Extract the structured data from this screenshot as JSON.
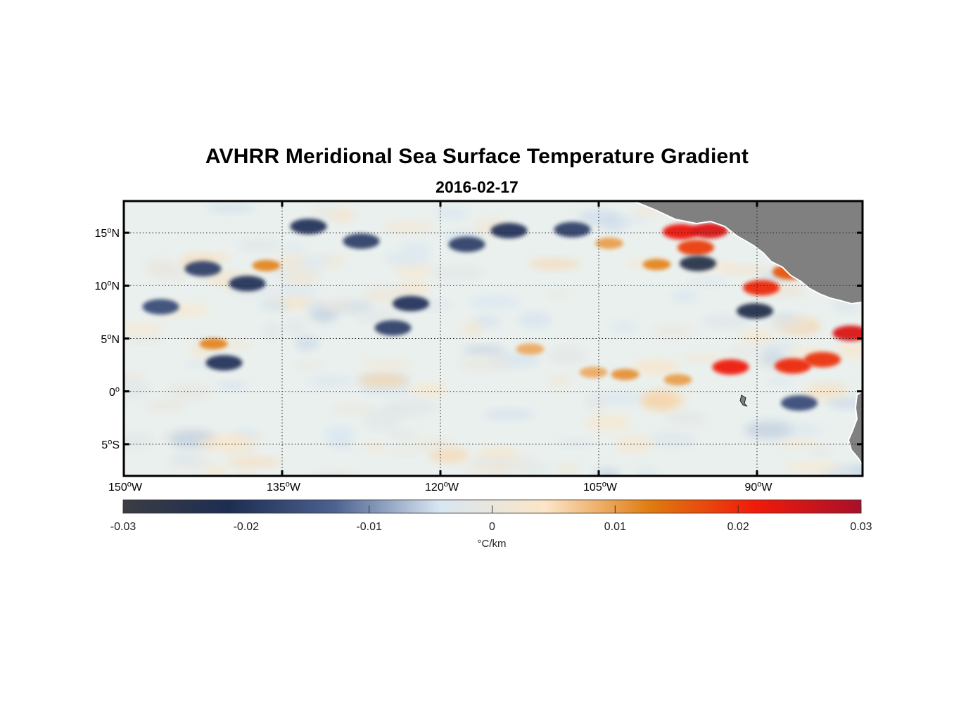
{
  "title": "AVHRR Meridional Sea Surface Temperature Gradient",
  "subtitle": "2016-02-17",
  "map": {
    "type": "heatmap",
    "region": {
      "lon_range": [
        -150,
        -80
      ],
      "lat_range": [
        -8,
        18
      ]
    },
    "latitude_ticks": [
      {
        "value": 15,
        "deg": "15",
        "hem": "N"
      },
      {
        "value": 10,
        "deg": "10",
        "hem": "N"
      },
      {
        "value": 5,
        "deg": "5",
        "hem": "N"
      },
      {
        "value": 0,
        "deg": "0",
        "hem": ""
      },
      {
        "value": -5,
        "deg": "5",
        "hem": "S"
      }
    ],
    "longitude_ticks": [
      {
        "value": -150,
        "deg": "150",
        "hem": "W"
      },
      {
        "value": -135,
        "deg": "135",
        "hem": "W"
      },
      {
        "value": -120,
        "deg": "120",
        "hem": "W"
      },
      {
        "value": -105,
        "deg": "105",
        "hem": "W"
      },
      {
        "value": -90,
        "deg": "90",
        "hem": "W"
      }
    ],
    "grid": "dotted",
    "land_color": "#808080",
    "ocean_neutral_color": "#eaf0ee"
  },
  "colorbar": {
    "ticks": [
      "-0.03",
      "-0.02",
      "-0.01",
      "0",
      "0.01",
      "0.02",
      "0.03"
    ],
    "unit_label": "°C/km",
    "colors": [
      "#3a3d44",
      "#1d2d52",
      "#4c6190",
      "#d8e6f2",
      "#fbe6c8",
      "#e07b10",
      "#f01a0a",
      "#a8102a"
    ]
  },
  "chart_data": {
    "type": "heatmap",
    "title": "AVHRR Meridional Sea Surface Temperature Gradient",
    "subtitle": "2016-02-17",
    "variable_unit": "°C/km",
    "value_range": [
      -0.03,
      0.03
    ],
    "xlim": [
      -150,
      -80
    ],
    "ylim": [
      -8,
      18
    ],
    "features": [
      {
        "lon": -97.2,
        "lat": 15.1,
        "value": 0.022
      },
      {
        "lon": -94.5,
        "lat": 15.2,
        "value": 0.024
      },
      {
        "lon": -95.8,
        "lat": 13.6,
        "value": 0.018
      },
      {
        "lon": -95.6,
        "lat": 12.1,
        "value": -0.025
      },
      {
        "lon": -89.6,
        "lat": 9.8,
        "value": 0.02
      },
      {
        "lon": -86.8,
        "lat": 11.3,
        "value": 0.016
      },
      {
        "lon": -90.2,
        "lat": 7.6,
        "value": -0.024
      },
      {
        "lon": -81.1,
        "lat": 5.5,
        "value": 0.024
      },
      {
        "lon": -92.5,
        "lat": 2.3,
        "value": 0.021
      },
      {
        "lon": -86.6,
        "lat": 2.4,
        "value": 0.02
      },
      {
        "lon": -83.8,
        "lat": 3.0,
        "value": 0.019
      },
      {
        "lon": -102.5,
        "lat": 1.6,
        "value": 0.011
      },
      {
        "lon": -97.5,
        "lat": 1.1,
        "value": 0.01
      },
      {
        "lon": -105.5,
        "lat": 1.8,
        "value": 0.009
      },
      {
        "lon": -86.0,
        "lat": -1.1,
        "value": -0.016
      },
      {
        "lon": -138.3,
        "lat": 10.2,
        "value": -0.02
      },
      {
        "lon": -142.5,
        "lat": 11.6,
        "value": -0.018
      },
      {
        "lon": -136.5,
        "lat": 11.9,
        "value": 0.012
      },
      {
        "lon": -132.5,
        "lat": 15.6,
        "value": -0.02
      },
      {
        "lon": -127.5,
        "lat": 14.2,
        "value": -0.018
      },
      {
        "lon": -117.5,
        "lat": 13.9,
        "value": -0.018
      },
      {
        "lon": -113.5,
        "lat": 15.2,
        "value": -0.02
      },
      {
        "lon": -107.5,
        "lat": 15.3,
        "value": -0.018
      },
      {
        "lon": -140.5,
        "lat": 2.7,
        "value": -0.02
      },
      {
        "lon": -141.5,
        "lat": 4.5,
        "value": 0.012
      },
      {
        "lon": -124.5,
        "lat": 6.0,
        "value": -0.018
      },
      {
        "lon": -122.8,
        "lat": 8.3,
        "value": -0.02
      },
      {
        "lon": -146.5,
        "lat": 8.0,
        "value": -0.016
      },
      {
        "lon": -99.5,
        "lat": 12.0,
        "value": 0.012
      },
      {
        "lon": -104.0,
        "lat": 14.0,
        "value": 0.01
      },
      {
        "lon": -111.5,
        "lat": 4.0,
        "value": 0.009
      }
    ]
  }
}
